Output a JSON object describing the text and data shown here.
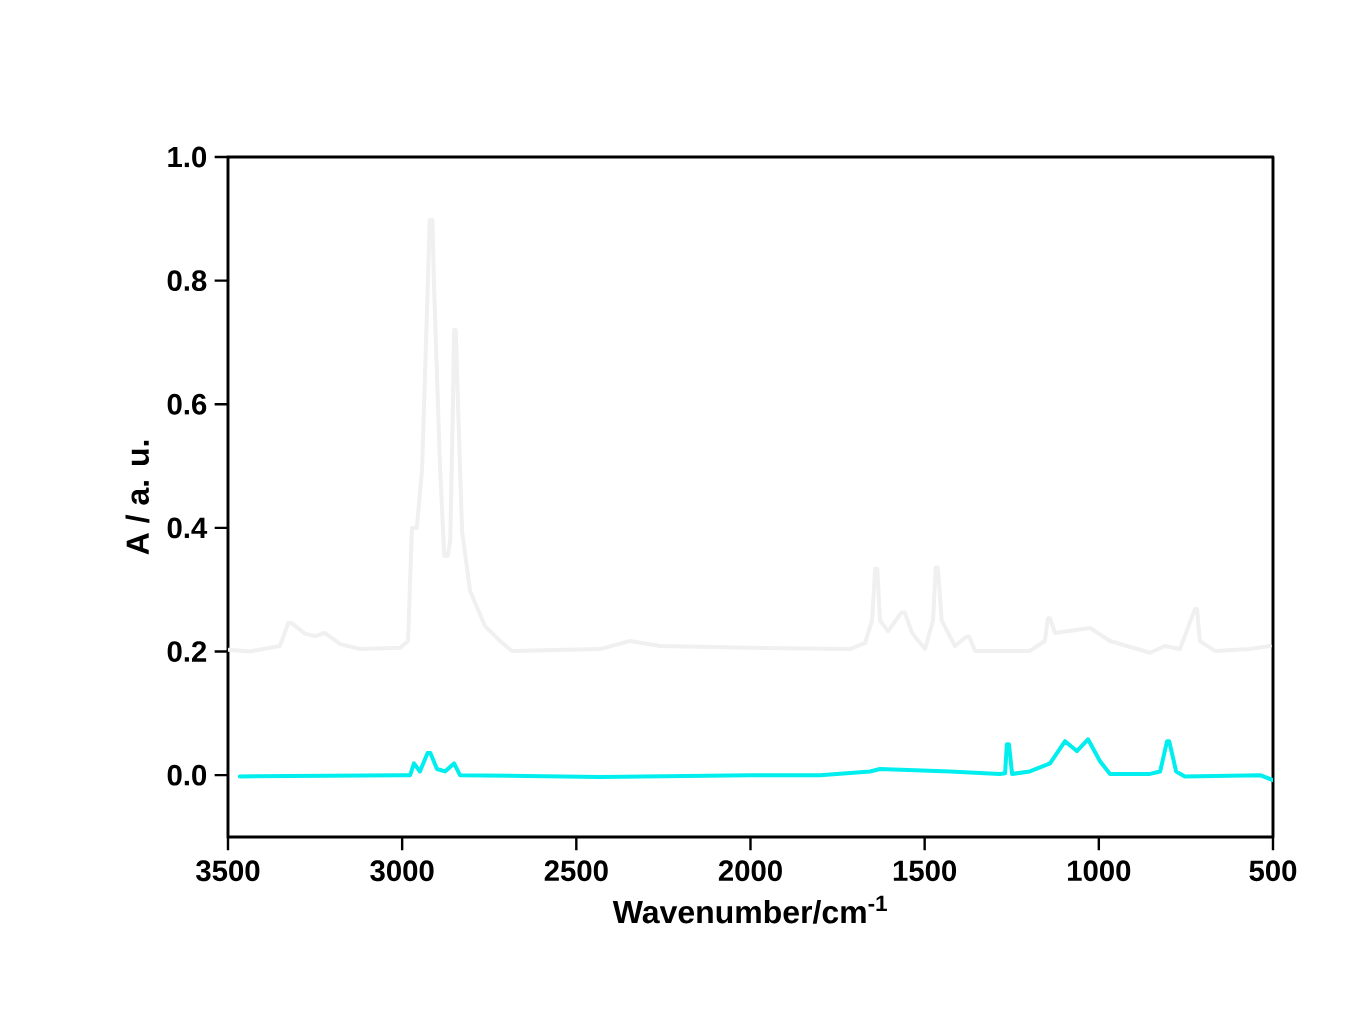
{
  "chart_data": {
    "type": "line",
    "xlabel": "Wavenumber/cm$^{-1}$",
    "ylabel": "A / a. u.",
    "xlim": [
      3500,
      500
    ],
    "ylim": [
      -0.1,
      1.0
    ],
    "xticks": [
      3500,
      3000,
      2500,
      2000,
      1500,
      1000,
      500
    ],
    "yticks": [
      {
        "value": 0,
        "label": "0.0"
      },
      {
        "value": 0.2,
        "label": "0.2"
      },
      {
        "value": 0.4,
        "label": "0.4"
      },
      {
        "value": 0.6,
        "label": "0.6"
      },
      {
        "value": 0.8,
        "label": "0.8"
      },
      {
        "value": 1.0,
        "label": "1.0"
      }
    ],
    "grid": false,
    "marker": "none",
    "line_style": "solid",
    "series": [
      {
        "color": "#eff0ef",
        "x": [
          3500,
          3437,
          3351,
          3327,
          3317,
          3279,
          3250,
          3222,
          3178,
          3121,
          3006,
          2983,
          2972,
          2958,
          2943,
          2926,
          2921,
          2913,
          2909,
          2891,
          2879,
          2869,
          2862,
          2854,
          2851,
          2846,
          2840,
          2828,
          2805,
          2762,
          2719,
          2685,
          2432,
          2346,
          2260,
          2001,
          1714,
          1671,
          1651,
          1642,
          1636,
          1628,
          1605,
          1567,
          1557,
          1536,
          1499,
          1476,
          1468,
          1462,
          1451,
          1413,
          1380,
          1372,
          1355,
          1198,
          1155,
          1146,
          1140,
          1126,
          1025,
          968,
          853,
          810,
          767,
          724,
          718,
          710,
          667,
          566,
          509
        ],
        "values": [
          0.203,
          0.2,
          0.209,
          0.246,
          0.246,
          0.229,
          0.225,
          0.23,
          0.212,
          0.204,
          0.206,
          0.217,
          0.4,
          0.4,
          0.493,
          0.8,
          0.898,
          0.898,
          0.8,
          0.493,
          0.355,
          0.355,
          0.379,
          0.606,
          0.72,
          0.72,
          0.606,
          0.395,
          0.298,
          0.241,
          0.217,
          0.201,
          0.204,
          0.217,
          0.209,
          0.206,
          0.204,
          0.214,
          0.25,
          0.334,
          0.334,
          0.25,
          0.233,
          0.263,
          0.263,
          0.23,
          0.204,
          0.25,
          0.336,
          0.336,
          0.25,
          0.209,
          0.224,
          0.224,
          0.201,
          0.201,
          0.217,
          0.254,
          0.254,
          0.23,
          0.238,
          0.217,
          0.198,
          0.209,
          0.204,
          0.269,
          0.269,
          0.217,
          0.201,
          0.204,
          0.209
        ]
      },
      {
        "color": "#00eeee",
        "x": [
          3466,
          3006,
          2977,
          2966,
          2949,
          2927,
          2919,
          2900,
          2877,
          2851,
          2834,
          2432,
          2001,
          1800,
          1657,
          1628,
          1427,
          1284,
          1269,
          1264,
          1258,
          1249,
          1198,
          1140,
          1097,
          1063,
          1031,
          997,
          968,
          853,
          824,
          804,
          798,
          778,
          753,
          537,
          500
        ],
        "values": [
          -0.002,
          0,
          0,
          0.019,
          0.006,
          0.036,
          0.036,
          0.01,
          0.006,
          0.019,
          0,
          -0.003,
          0,
          0,
          0.006,
          0.01,
          0.006,
          0.002,
          0.003,
          0.05,
          0.05,
          0.002,
          0.006,
          0.019,
          0.055,
          0.039,
          0.058,
          0.023,
          0.002,
          0.002,
          0.006,
          0.055,
          0.055,
          0.006,
          -0.002,
          0,
          -0.008
        ]
      }
    ]
  }
}
